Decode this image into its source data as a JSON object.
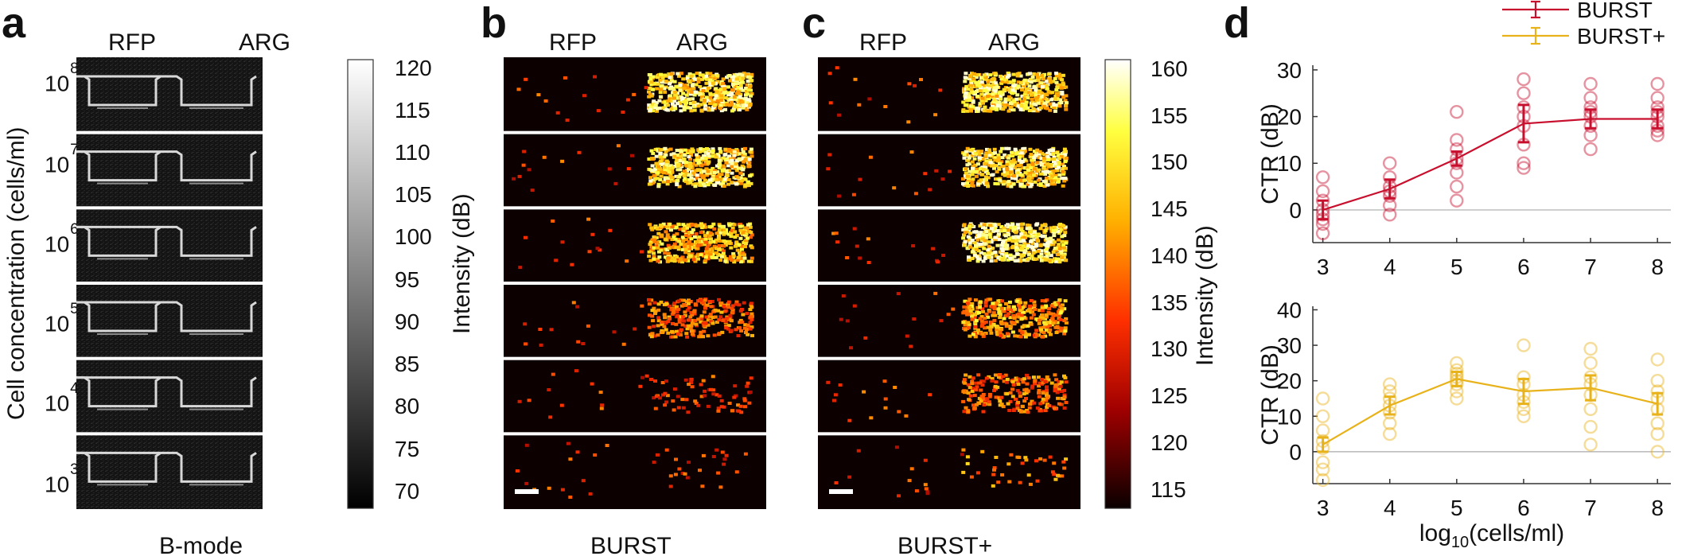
{
  "panels": {
    "a": {
      "letter": "a",
      "col_labels": [
        "RFP",
        "ARG"
      ],
      "caption": "B-mode",
      "ylabel": "Cell concentration (cells/ml)",
      "row_labels": [
        {
          "base": "10",
          "exp": "8"
        },
        {
          "base": "10",
          "exp": "7"
        },
        {
          "base": "10",
          "exp": "6"
        },
        {
          "base": "10",
          "exp": "5"
        },
        {
          "base": "10",
          "exp": "4"
        },
        {
          "base": "10",
          "exp": "3"
        }
      ],
      "colorbar": {
        "label": "Intensity (dB)",
        "ticks": [
          "120",
          "115",
          "110",
          "105",
          "100",
          "95",
          "90",
          "85",
          "80",
          "75",
          "70"
        ],
        "range": [
          68,
          121
        ],
        "colormap": "gray"
      }
    },
    "b": {
      "letter": "b",
      "col_labels": [
        "RFP",
        "ARG"
      ],
      "caption": "BURST"
    },
    "c": {
      "letter": "c",
      "col_labels": [
        "RFP",
        "ARG"
      ],
      "caption": "BURST+",
      "colorbar": {
        "label": "Intensity (dB)",
        "ticks": [
          "160",
          "155",
          "150",
          "145",
          "140",
          "135",
          "130",
          "125",
          "120",
          "115"
        ],
        "range": [
          113,
          161
        ],
        "colormap": "hot"
      }
    },
    "d": {
      "letter": "d"
    }
  },
  "chart_data": [
    {
      "type": "scatter",
      "panel": "d-top",
      "series": [
        {
          "name": "BURST",
          "color": "#c8102e",
          "x": [
            3,
            4,
            5,
            6,
            7,
            8
          ],
          "mean": [
            0,
            4.5,
            11,
            18.5,
            19.5,
            19.5
          ],
          "err": [
            2,
            2,
            1.5,
            4,
            2,
            2
          ],
          "points": [
            [
              3,
              7
            ],
            [
              3,
              4
            ],
            [
              3,
              2
            ],
            [
              3,
              0
            ],
            [
              3,
              -1
            ],
            [
              3,
              -3
            ],
            [
              3,
              -5
            ],
            [
              3,
              -2
            ],
            [
              4,
              10
            ],
            [
              4,
              7
            ],
            [
              4,
              5
            ],
            [
              4,
              4
            ],
            [
              4,
              3
            ],
            [
              4,
              1
            ],
            [
              4,
              -1
            ],
            [
              5,
              21
            ],
            [
              5,
              15
            ],
            [
              5,
              13
            ],
            [
              5,
              11
            ],
            [
              5,
              10
            ],
            [
              5,
              8
            ],
            [
              5,
              5
            ],
            [
              5,
              2
            ],
            [
              6,
              28
            ],
            [
              6,
              25
            ],
            [
              6,
              22
            ],
            [
              6,
              20
            ],
            [
              6,
              18
            ],
            [
              6,
              14
            ],
            [
              6,
              10
            ],
            [
              6,
              9
            ],
            [
              7,
              27
            ],
            [
              7,
              24
            ],
            [
              7,
              22
            ],
            [
              7,
              21
            ],
            [
              7,
              20
            ],
            [
              7,
              18
            ],
            [
              7,
              16
            ],
            [
              7,
              13
            ],
            [
              8,
              27
            ],
            [
              8,
              24
            ],
            [
              8,
              22
            ],
            [
              8,
              21
            ],
            [
              8,
              20
            ],
            [
              8,
              18
            ],
            [
              8,
              17
            ],
            [
              8,
              16
            ]
          ]
        }
      ],
      "xticks": [
        "3",
        "4",
        "5",
        "6",
        "7",
        "8"
      ],
      "yticks": [
        "0",
        "10",
        "20",
        "30"
      ],
      "ylabel": "CTR (dB)",
      "xlim": [
        2.85,
        8.2
      ],
      "ylim": [
        -7,
        31
      ]
    },
    {
      "type": "scatter",
      "panel": "d-bottom",
      "series": [
        {
          "name": "BURST+",
          "color": "#e8b21a",
          "x": [
            3,
            4,
            5,
            6,
            7,
            8
          ],
          "mean": [
            2,
            13,
            20.5,
            17,
            18,
            13.5
          ],
          "err": [
            2,
            2.5,
            2,
            3.5,
            3.5,
            3
          ],
          "points": [
            [
              3,
              15
            ],
            [
              3,
              10
            ],
            [
              3,
              6
            ],
            [
              3,
              3
            ],
            [
              3,
              1
            ],
            [
              3,
              -3
            ],
            [
              3,
              -5
            ],
            [
              3,
              -8
            ],
            [
              4,
              19
            ],
            [
              4,
              17
            ],
            [
              4,
              15
            ],
            [
              4,
              13
            ],
            [
              4,
              11
            ],
            [
              4,
              8
            ],
            [
              4,
              5
            ],
            [
              5,
              25
            ],
            [
              5,
              23
            ],
            [
              5,
              22
            ],
            [
              5,
              21
            ],
            [
              5,
              20
            ],
            [
              5,
              19
            ],
            [
              5,
              17
            ],
            [
              5,
              15
            ],
            [
              6,
              30
            ],
            [
              6,
              21
            ],
            [
              6,
              19
            ],
            [
              6,
              16
            ],
            [
              6,
              14
            ],
            [
              6,
              12
            ],
            [
              6,
              10
            ],
            [
              7,
              29
            ],
            [
              7,
              25
            ],
            [
              7,
              21
            ],
            [
              7,
              19
            ],
            [
              7,
              16
            ],
            [
              7,
              12
            ],
            [
              7,
              7
            ],
            [
              7,
              2
            ],
            [
              8,
              26
            ],
            [
              8,
              20
            ],
            [
              8,
              17
            ],
            [
              8,
              15
            ],
            [
              8,
              12
            ],
            [
              8,
              8
            ],
            [
              8,
              5
            ],
            [
              8,
              0
            ]
          ]
        }
      ],
      "xticks": [
        "3",
        "4",
        "5",
        "6",
        "7",
        "8"
      ],
      "yticks": [
        "0",
        "10",
        "20",
        "30",
        "40"
      ],
      "ylabel": "CTR (dB)",
      "xlabel": {
        "base": "log",
        "sub": "10",
        "rest": "(cells/ml)"
      },
      "xlim": [
        2.85,
        8.2
      ],
      "ylim": [
        -9,
        41
      ]
    }
  ],
  "legend": [
    {
      "label": "BURST",
      "color": "#c8102e"
    },
    {
      "label": "BURST+",
      "color": "#e8b21a"
    }
  ]
}
